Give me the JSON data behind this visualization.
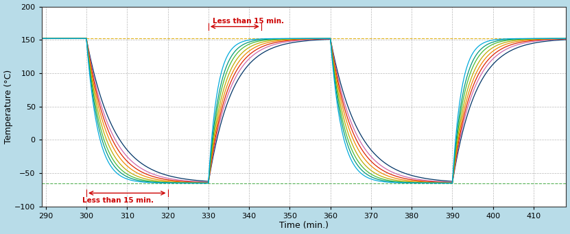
{
  "title": "",
  "xlabel": "Time (min.)",
  "ylabel": "Temperature (°C)",
  "xlim": [
    289,
    418
  ],
  "ylim": [
    -100,
    200
  ],
  "xticks": [
    290,
    300,
    310,
    320,
    330,
    340,
    350,
    360,
    370,
    380,
    390,
    400,
    410
  ],
  "yticks": [
    -100,
    -50,
    0,
    50,
    100,
    150,
    200
  ],
  "background_color": "#b8dce8",
  "plot_bg_color": "#ffffff",
  "high_temp": 152,
  "low_temp": -65,
  "line_colors": [
    "#00aadd",
    "#009977",
    "#44bb33",
    "#bbaa00",
    "#ee8800",
    "#dd2200",
    "#cc66aa",
    "#003366"
  ],
  "annotation_color": "#cc0000",
  "grid_color": "#999999",
  "setpoint_high_color": "#ddaa00",
  "setpoint_low_color": "#44aa44",
  "ann_bottom_x1": 300,
  "ann_bottom_x2": 320,
  "ann_bottom_y": -80,
  "ann_top_x1": 330,
  "ann_top_x2": 343,
  "ann_top_y": 170
}
